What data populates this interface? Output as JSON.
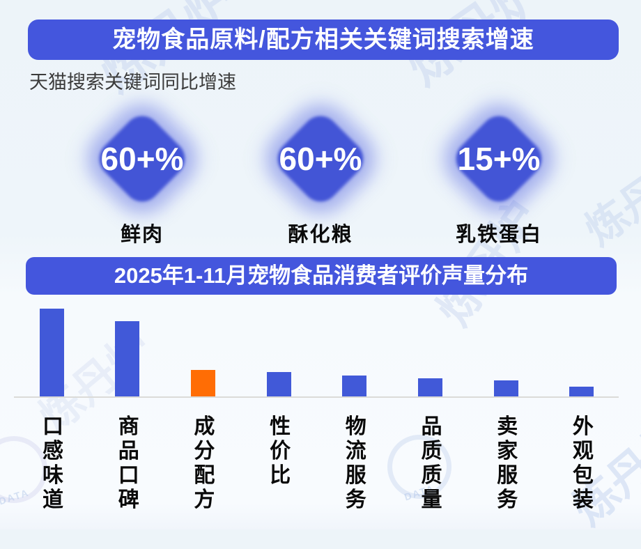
{
  "page": {
    "header_title": "宠物食品原料/配方相关关键词搜索增速",
    "subtitle": "天猫搜索关键词同比增速",
    "section2_title": "2025年1-11月宠物食品消费者评价声量分布"
  },
  "watermark": {
    "brand": "炼丹炉",
    "badge": "DATA"
  },
  "colors": {
    "banner_blue": "#4456DD",
    "diamond_blue": "#4355D6",
    "bar_blue": "#4159D8",
    "highlight_orange": "#FF6D05",
    "axis_gray": "#DBDBD8",
    "background": "#EEF5FA"
  },
  "chart_data": [
    {
      "type": "kpi",
      "title": "天猫搜索关键词同比增速",
      "items": [
        {
          "label": "鲜肉",
          "value": "60+%"
        },
        {
          "label": "酥化粮",
          "value": "60+%"
        },
        {
          "label": "乳铁蛋白",
          "value": "15+%"
        }
      ]
    },
    {
      "type": "bar",
      "title": "2025年1-11月宠物食品消费者评价声量分布",
      "categories": [
        "口感味道",
        "商品口碑",
        "成分配方",
        "性价比",
        "物流服务",
        "品质质量",
        "卖家服务",
        "外观包装"
      ],
      "values": [
        100,
        86,
        30,
        28,
        24,
        21,
        18,
        11
      ],
      "value_note": "relative volume index, no numeric axis shown",
      "highlight_index": 2,
      "bar_color": "#4159D8",
      "highlight_color": "#FF6D05",
      "xlabel": "",
      "ylabel": "",
      "ylim": [
        0,
        100
      ],
      "grid": false,
      "legend": false
    }
  ]
}
